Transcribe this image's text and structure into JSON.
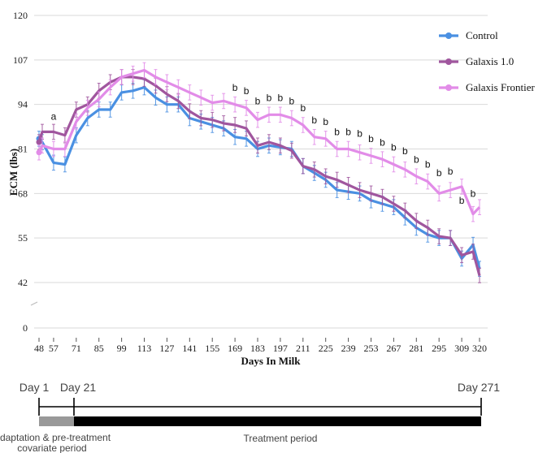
{
  "chart_data": {
    "type": "line",
    "title": "",
    "xlabel": "Days In Milk",
    "ylabel": "ECM (lbs)",
    "ylim": [
      0,
      120
    ],
    "yticks": [
      "0",
      "42",
      "55",
      "68",
      "81",
      "94",
      "107",
      "120"
    ],
    "xticks": [
      "48",
      "57",
      "71",
      "85",
      "99",
      "113",
      "127",
      "141",
      "155",
      "169",
      "183",
      "197",
      "211",
      "225",
      "239",
      "253",
      "267",
      "281",
      "295",
      "309",
      "320"
    ],
    "grid": true,
    "legend_position": "top-right",
    "x": [
      48,
      50,
      57,
      64,
      71,
      78,
      85,
      92,
      99,
      106,
      113,
      120,
      127,
      134,
      141,
      148,
      155,
      162,
      169,
      176,
      183,
      190,
      197,
      204,
      211,
      218,
      225,
      232,
      239,
      246,
      253,
      260,
      267,
      274,
      281,
      288,
      295,
      302,
      309,
      316,
      320
    ],
    "series": [
      {
        "name": "Control",
        "color": "#4a90e2",
        "values": [
          84,
          83,
          77,
          76.5,
          85,
          90,
          92.5,
          92.5,
          97.5,
          98,
          99,
          96,
          94,
          94,
          90,
          89,
          88,
          87,
          84.5,
          84,
          81,
          82,
          81.5,
          81,
          76,
          74,
          72,
          69,
          68.5,
          68,
          66,
          65,
          64,
          61,
          58,
          56,
          55,
          55,
          49,
          53,
          46
        ]
      },
      {
        "name": "Galaxis 1.0",
        "color": "#a0569e",
        "values": [
          83,
          86,
          86,
          85,
          92.5,
          94,
          98,
          100.5,
          102,
          102,
          101.5,
          99.5,
          97,
          95,
          92,
          90,
          89.5,
          88.5,
          88,
          87,
          82,
          83,
          82,
          80.5,
          76,
          75,
          73,
          72,
          70.5,
          69,
          68,
          67,
          65,
          63,
          60,
          58,
          55.5,
          55,
          50,
          51,
          44
        ]
      },
      {
        "name": "Galaxis Frontier",
        "color": "#e28ce8",
        "values": [
          80,
          82,
          81,
          81,
          89,
          93,
          95.5,
          99,
          102,
          103,
          104,
          102,
          100.5,
          99,
          97.5,
          96,
          94.5,
          95,
          94,
          93,
          89.5,
          91,
          91,
          90,
          88,
          84.5,
          84,
          81,
          81,
          80,
          79,
          78,
          76.5,
          75,
          73,
          71.5,
          68,
          69,
          70,
          62,
          64
        ]
      }
    ],
    "annotations": [
      {
        "label": "a",
        "x": 57,
        "y": 89.5
      },
      {
        "label": "b",
        "x": 169,
        "y": 98
      },
      {
        "label": "b",
        "x": 176,
        "y": 97
      },
      {
        "label": "b",
        "x": 183,
        "y": 94
      },
      {
        "label": "b",
        "x": 190,
        "y": 95
      },
      {
        "label": "b",
        "x": 197,
        "y": 95
      },
      {
        "label": "b",
        "x": 204,
        "y": 94
      },
      {
        "label": "b",
        "x": 211,
        "y": 92
      },
      {
        "label": "b",
        "x": 218,
        "y": 88.5
      },
      {
        "label": "b",
        "x": 225,
        "y": 88
      },
      {
        "label": "b",
        "x": 232,
        "y": 85
      },
      {
        "label": "b",
        "x": 239,
        "y": 85
      },
      {
        "label": "b",
        "x": 246,
        "y": 84.5
      },
      {
        "label": "b",
        "x": 253,
        "y": 83
      },
      {
        "label": "b",
        "x": 260,
        "y": 82
      },
      {
        "label": "b",
        "x": 267,
        "y": 80.5
      },
      {
        "label": "b",
        "x": 274,
        "y": 79.5
      },
      {
        "label": "b",
        "x": 281,
        "y": 77
      },
      {
        "label": "b",
        "x": 288,
        "y": 75.5
      },
      {
        "label": "b",
        "x": 295,
        "y": 73
      },
      {
        "label": "b",
        "x": 302,
        "y": 73.5
      },
      {
        "label": "b",
        "x": 309,
        "y": 65
      },
      {
        "label": "b",
        "x": 316,
        "y": 67
      }
    ]
  },
  "timeline": {
    "day1_label": "Day 1",
    "day21_label": "Day 21",
    "day271_label": "Day 271",
    "adaptation_label_line1": "Adaptation & pre-treatment",
    "adaptation_label_line2": "covariate period",
    "treatment_label": "Treatment period",
    "adaptation_color": "#999999",
    "treatment_color": "#000000"
  }
}
